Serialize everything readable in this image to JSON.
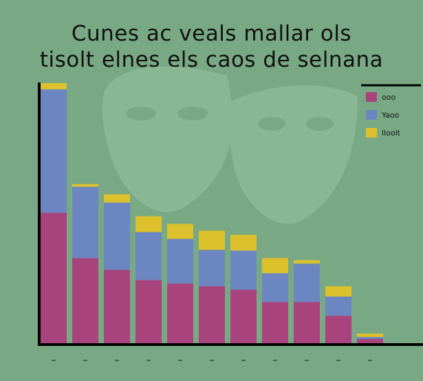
{
  "chart_data": {
    "type": "bar",
    "stacked": true,
    "title_lines": [
      "Cunes ac veals mallar ols",
      "tisolt elnes els caos de selnana"
    ],
    "categories": [
      "–",
      "–",
      "–",
      "–",
      "–",
      "–",
      "–",
      "–",
      "–",
      "–",
      "–"
    ],
    "series": [
      {
        "name": "ooo",
        "color": "#a8437e",
        "values": [
          190,
          124,
          107,
          92,
          87,
          83,
          78,
          60,
          60,
          40,
          6
        ]
      },
      {
        "name": "Yaoo",
        "color": "#6b86c0",
        "values": [
          180,
          104,
          98,
          70,
          65,
          53,
          57,
          42,
          56,
          28,
          3
        ]
      },
      {
        "name": "lloolt",
        "color": "#dcc12c",
        "values": [
          9,
          4,
          12,
          23,
          22,
          28,
          23,
          22,
          5,
          15,
          5
        ]
      }
    ],
    "legend_position": "top-right",
    "ylim": [
      0,
      395
    ],
    "background_color": "#78a984"
  }
}
